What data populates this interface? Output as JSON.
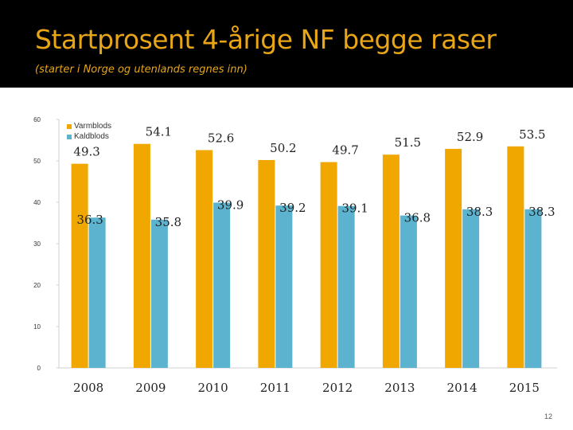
{
  "header": {
    "title": "Startprosent 4-årige NF begge raser",
    "subtitle": "(starter i Norge og utenlands regnes inn)"
  },
  "page_number": "12",
  "colors": {
    "header_bg": "#000000",
    "title": "#e8a516",
    "varmblods": "#f0a800",
    "kaldblods": "#5bb3cf"
  },
  "chart_data": {
    "type": "bar",
    "title": "Startprosent 4-årige NF begge raser",
    "xlabel": "",
    "ylabel": "",
    "categories": [
      "2008",
      "2009",
      "2010",
      "2011",
      "2012",
      "2013",
      "2014",
      "2015"
    ],
    "series": [
      {
        "name": "Varmblods",
        "values": [
          49.3,
          54.1,
          52.6,
          50.2,
          49.7,
          51.5,
          52.9,
          53.5
        ],
        "labels": [
          "49.3",
          "54.1",
          "52.6",
          "50.2",
          "49.7",
          "51.5",
          "52.9",
          "53.5"
        ]
      },
      {
        "name": "Kaldblods",
        "values": [
          36.3,
          35.8,
          39.9,
          39.2,
          39.1,
          36.8,
          38.3,
          38.3
        ],
        "labels": [
          "36.3",
          "35.8",
          "39.9",
          "39.2",
          "39.1",
          "36.8",
          "38.3",
          "38.3"
        ]
      }
    ],
    "ylim": [
      0,
      60
    ],
    "yticks": [
      "0",
      "10",
      "20",
      "30",
      "40",
      "50",
      "60"
    ],
    "legend_position": "top-left",
    "grid": false
  }
}
